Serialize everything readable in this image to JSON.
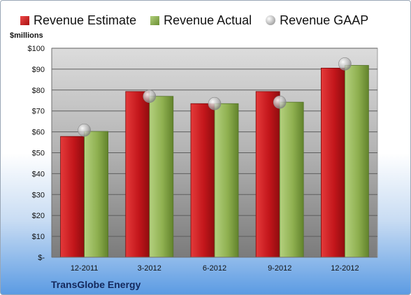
{
  "chart_data": {
    "type": "bar",
    "categories": [
      "12-2011",
      "3-2012",
      "6-2012",
      "9-2012",
      "12-2012"
    ],
    "series": [
      {
        "name": "Revenue Estimate",
        "values": [
          57.8,
          79.3,
          73.5,
          79.3,
          90.5
        ]
      },
      {
        "name": "Revenue Actual",
        "values": [
          60.2,
          77.0,
          73.5,
          74.2,
          91.8
        ]
      },
      {
        "name": "Revenue GAAP",
        "values": [
          60.8,
          77.0,
          73.5,
          74.2,
          92.5
        ]
      }
    ],
    "ylabel": "$millions",
    "ylim": [
      0,
      100
    ],
    "yticks": [
      0,
      10,
      20,
      30,
      40,
      50,
      60,
      70,
      80,
      90,
      100
    ],
    "ytick_labels": [
      "$-",
      "$10",
      "$20",
      "$30",
      "$40",
      "$50",
      "$60",
      "$70",
      "$80",
      "$90",
      "$100"
    ],
    "grid": true,
    "legend_position": "top",
    "caption": "TransGlobe Energy",
    "colors": {
      "estimate": "#c8161b",
      "actual": "#8fb050",
      "gaap": "#b5b5b5"
    }
  }
}
